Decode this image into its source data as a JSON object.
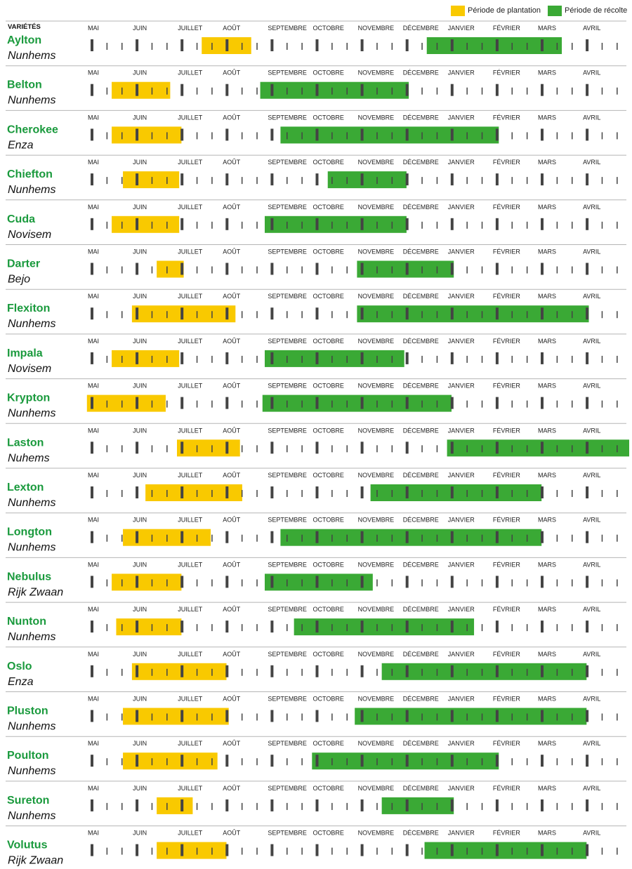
{
  "legend": {
    "planting_label": "Période de plantation",
    "harvest_label": "Période de récolte"
  },
  "column_header": "VARIÉTÉS",
  "colors": {
    "planting": "#f9c900",
    "harvest": "#3aa935",
    "tick": "#444444",
    "variety_name": "#1a9a3d"
  },
  "chart_data": {
    "type": "gantt",
    "months": [
      "MAI",
      "JUIN",
      "JUILLET",
      "AOÛT",
      "SEPTEMBRE",
      "OCTOBRE",
      "NOVEMBRE",
      "DÉCEMBRE",
      "JANVIER",
      "FÉVRIER",
      "MARS",
      "AVRIL"
    ],
    "varieties": [
      {
        "name": "Aylton",
        "breeder": "Nunhems",
        "planting": [
          2.5,
          3.6
        ],
        "harvest": [
          7.5,
          10.5
        ]
      },
      {
        "name": "Belton",
        "breeder": "Nunhems",
        "planting": [
          0.5,
          1.8
        ],
        "harvest": [
          3.8,
          7.1
        ]
      },
      {
        "name": "Cherokee",
        "breeder": "Enza",
        "planting": [
          0.5,
          2.05
        ],
        "harvest": [
          4.25,
          9.1
        ]
      },
      {
        "name": "Chiefton",
        "breeder": "Nunhems",
        "planting": [
          0.75,
          2.0
        ],
        "harvest": [
          5.3,
          7.05
        ]
      },
      {
        "name": "Cuda",
        "breeder": "Novisem",
        "planting": [
          0.5,
          2.0
        ],
        "harvest": [
          3.9,
          7.05
        ]
      },
      {
        "name": "Darter",
        "breeder": "Bejo",
        "planting": [
          1.5,
          2.1
        ],
        "harvest": [
          5.95,
          8.1
        ]
      },
      {
        "name": "Flexiton",
        "breeder": "Nunhems",
        "planting": [
          0.95,
          3.25
        ],
        "harvest": [
          5.95,
          11.1
        ]
      },
      {
        "name": "Impala",
        "breeder": "Novisem",
        "planting": [
          0.5,
          2.0
        ],
        "harvest": [
          3.9,
          7.0
        ]
      },
      {
        "name": "Krypton",
        "breeder": "Nunhems",
        "planting": [
          -0.05,
          1.7
        ],
        "harvest": [
          3.85,
          8.05
        ]
      },
      {
        "name": "Laston",
        "breeder": "Nuhems",
        "planting": [
          1.95,
          3.35
        ],
        "harvest": [
          7.95,
          12.0
        ]
      },
      {
        "name": "Lexton",
        "breeder": "Nunhems",
        "planting": [
          1.25,
          3.4
        ],
        "harvest": [
          6.25,
          10.05
        ]
      },
      {
        "name": "Longton",
        "breeder": "Nunhems",
        "planting": [
          0.75,
          2.7
        ],
        "harvest": [
          4.25,
          10.05
        ]
      },
      {
        "name": "Nebulus",
        "breeder": "Rijk Zwaan",
        "planting": [
          0.5,
          2.05
        ],
        "harvest": [
          3.9,
          6.3
        ]
      },
      {
        "name": "Nunton",
        "breeder": "Nunhems",
        "planting": [
          0.6,
          2.05
        ],
        "harvest": [
          4.55,
          8.55
        ]
      },
      {
        "name": "Oslo",
        "breeder": "Enza",
        "planting": [
          0.95,
          3.05
        ],
        "harvest": [
          6.5,
          11.05
        ]
      },
      {
        "name": "Pluston",
        "breeder": "Nunhems",
        "planting": [
          0.75,
          3.1
        ],
        "harvest": [
          5.9,
          11.05
        ]
      },
      {
        "name": "Poulton",
        "breeder": "Nunhems",
        "planting": [
          0.75,
          2.85
        ],
        "harvest": [
          4.95,
          9.1
        ]
      },
      {
        "name": "Sureton",
        "breeder": "Nunhems",
        "planting": [
          1.5,
          2.3
        ],
        "harvest": [
          6.5,
          8.1
        ]
      },
      {
        "name": "Volutus",
        "breeder": "Rijk Zwaan",
        "planting": [
          1.5,
          3.05
        ],
        "harvest": [
          7.45,
          11.05
        ]
      }
    ]
  }
}
